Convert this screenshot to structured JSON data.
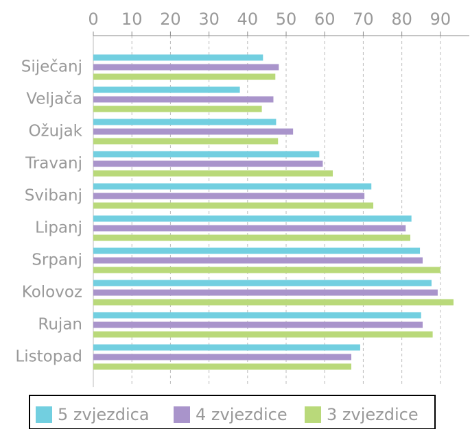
{
  "chart_data": {
    "type": "bar",
    "orientation": "horizontal",
    "categories": [
      "Siječanj",
      "Veljača",
      "Ožujak",
      "Travanj",
      "Svibanj",
      "Lipanj",
      "Srpanj",
      "Kolovoz",
      "Rujan",
      "Listopad"
    ],
    "series": [
      {
        "name": "5 zvjezdica",
        "color": "#72cfe0",
        "values": [
          44.0,
          38.0,
          47.4,
          58.6,
          72.1,
          82.5,
          84.7,
          87.7,
          85.0,
          69.2
        ]
      },
      {
        "name": "4 zvjezdice",
        "color": "#a994cb",
        "values": [
          48.1,
          46.7,
          51.8,
          59.5,
          70.3,
          81.0,
          85.4,
          89.3,
          85.4,
          66.9
        ]
      },
      {
        "name": "3 zvjezdice",
        "color": "#b9d97a",
        "values": [
          47.2,
          43.7,
          47.9,
          62.1,
          72.6,
          82.2,
          90.0,
          93.4,
          88.0,
          66.9
        ]
      }
    ],
    "xlim": [
      0,
      97.5
    ],
    "xticks": [
      0,
      10,
      20,
      30,
      40,
      50,
      60,
      70,
      80,
      90
    ],
    "grid": true,
    "legend": "bottom"
  }
}
